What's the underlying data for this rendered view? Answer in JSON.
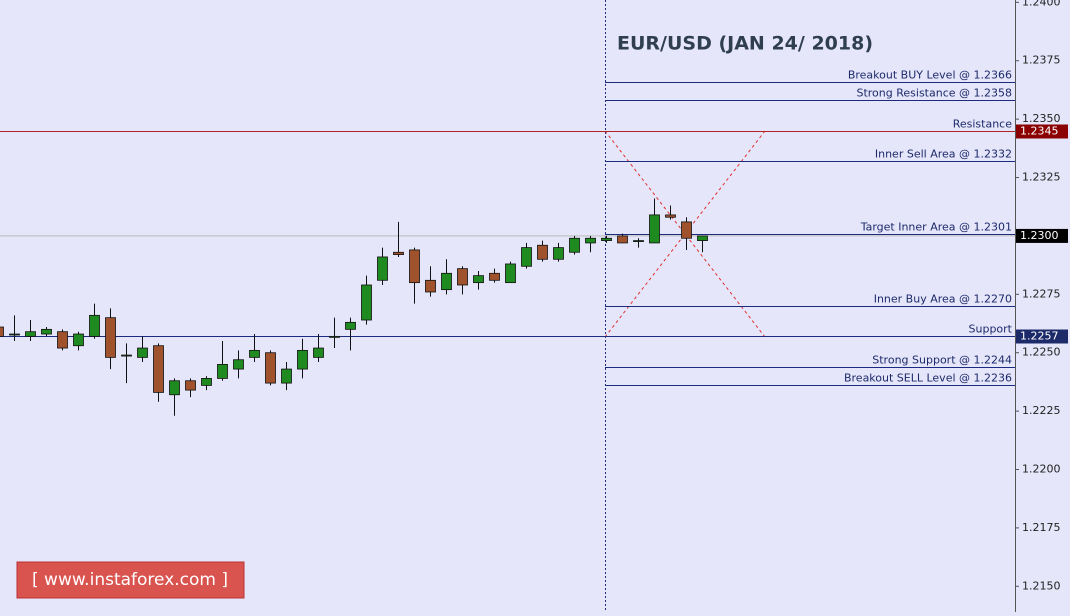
{
  "chart_data": {
    "type": "candlestick",
    "title": "EUR/USD (JAN 24/ 2018)",
    "watermark": "[ www.instaforex.com ]",
    "ohlc": {
      "open": [
        1.2261,
        1.2258,
        1.2257,
        1.2258,
        1.2259,
        1.2253,
        1.2257,
        1.2265,
        1.2249,
        1.2248,
        1.2253,
        1.2232,
        1.2238,
        1.2236,
        1.2239,
        1.2243,
        1.2248,
        1.225,
        1.2237,
        1.2243,
        1.2248,
        1.2257,
        1.226,
        1.2264,
        1.2281,
        1.2293,
        1.2294,
        1.2281,
        1.2277,
        1.2286,
        1.228,
        1.2284,
        1.228,
        1.2287,
        1.2296,
        1.229,
        1.2293,
        1.2297,
        1.2298,
        1.23,
        1.2298,
        1.2297,
        1.2309,
        1.2306,
        1.2298
      ],
      "high": [
        1.2262,
        1.2266,
        1.2264,
        1.2261,
        1.226,
        1.2259,
        1.2271,
        1.2269,
        1.2254,
        1.2257,
        1.2254,
        1.2239,
        1.2239,
        1.224,
        1.2255,
        1.2251,
        1.2258,
        1.2251,
        1.2246,
        1.2256,
        1.2258,
        1.2265,
        1.2265,
        1.2283,
        1.2295,
        1.2306,
        1.2295,
        1.2287,
        1.229,
        1.2287,
        1.2285,
        1.2286,
        1.2289,
        1.2297,
        1.2298,
        1.2297,
        1.23,
        1.23,
        1.23,
        1.2301,
        1.2299,
        1.2316,
        1.2313,
        1.2308,
        1.23
      ],
      "low": [
        1.2256,
        1.2255,
        1.2255,
        1.2257,
        1.2251,
        1.2251,
        1.2256,
        1.2243,
        1.2237,
        1.2246,
        1.2229,
        1.2223,
        1.2231,
        1.2234,
        1.2238,
        1.2239,
        1.2246,
        1.2236,
        1.2234,
        1.2239,
        1.2246,
        1.2252,
        1.2251,
        1.2262,
        1.2279,
        1.2291,
        1.2271,
        1.2274,
        1.2275,
        1.2275,
        1.2277,
        1.228,
        1.228,
        1.2286,
        1.2289,
        1.2289,
        1.2292,
        1.2293,
        1.2297,
        1.2297,
        1.2295,
        1.2297,
        1.2307,
        1.2294,
        1.2293
      ],
      "close": [
        1.2257,
        1.2258,
        1.2259,
        1.226,
        1.2252,
        1.2258,
        1.2266,
        1.2248,
        1.2249,
        1.2252,
        1.2233,
        1.2238,
        1.2234,
        1.2239,
        1.2245,
        1.2247,
        1.2251,
        1.2237,
        1.2243,
        1.2251,
        1.2252,
        1.2257,
        1.2263,
        1.2279,
        1.2291,
        1.2292,
        1.228,
        1.2276,
        1.2284,
        1.2279,
        1.2283,
        1.2281,
        1.2288,
        1.2295,
        1.229,
        1.2295,
        1.2299,
        1.2299,
        1.2299,
        1.2297,
        1.2298,
        1.2309,
        1.2308,
        1.2299,
        1.23
      ]
    },
    "up_color": "#1f8a1f",
    "down_color": "#a0522d",
    "ylim": [
      1.2139,
      1.2401
    ],
    "yticks": [
      {
        "value": 1.24,
        "label": "1.2400"
      },
      1.2375,
      {
        "value": 1.235,
        "label": "1.2350"
      },
      1.2325,
      {
        "value": 1.23,
        "label": "1.2300"
      },
      1.2275,
      {
        "value": 1.225,
        "label": "1.2250"
      },
      1.2225,
      {
        "value": 1.22,
        "label": "1.2200"
      },
      1.2175,
      {
        "value": 1.215,
        "label": "1.2150"
      }
    ],
    "levels": [
      {
        "value": 1.2366,
        "label": "Breakout BUY Level @ 1.2366",
        "color": "#1c2a80"
      },
      {
        "value": 1.2358,
        "label": "Strong Resistance @  1.2358",
        "color": "#1c2a80"
      },
      {
        "value": 1.2345,
        "label": "Resistance",
        "color": "#b22222",
        "full": true,
        "tag": "1.2345",
        "tag_color": "#8b0000"
      },
      {
        "value": 1.2332,
        "label": "Inner Sell Area @ 1.2332",
        "color": "#1c2a80"
      },
      {
        "value": 1.2301,
        "label": "Target Inner Area @ 1.2301",
        "color": "#1c2a80"
      },
      {
        "value": 1.227,
        "label": "Inner Buy Area  @ 1.2270",
        "color": "#1c2a80"
      },
      {
        "value": 1.2257,
        "label": "Support",
        "color": "#1c2a80",
        "full": true,
        "tag": "1.2257",
        "tag_color": "#1c2a6a"
      },
      {
        "value": 1.2244,
        "label": "Strong Support  @  1.2244",
        "color": "#1c2a80"
      },
      {
        "value": 1.2236,
        "label": "Breakout SELL Level  @ 1.2236",
        "color": "#1c2a80"
      }
    ],
    "last_price": {
      "value": 1.23,
      "label": "1.2300"
    }
  }
}
